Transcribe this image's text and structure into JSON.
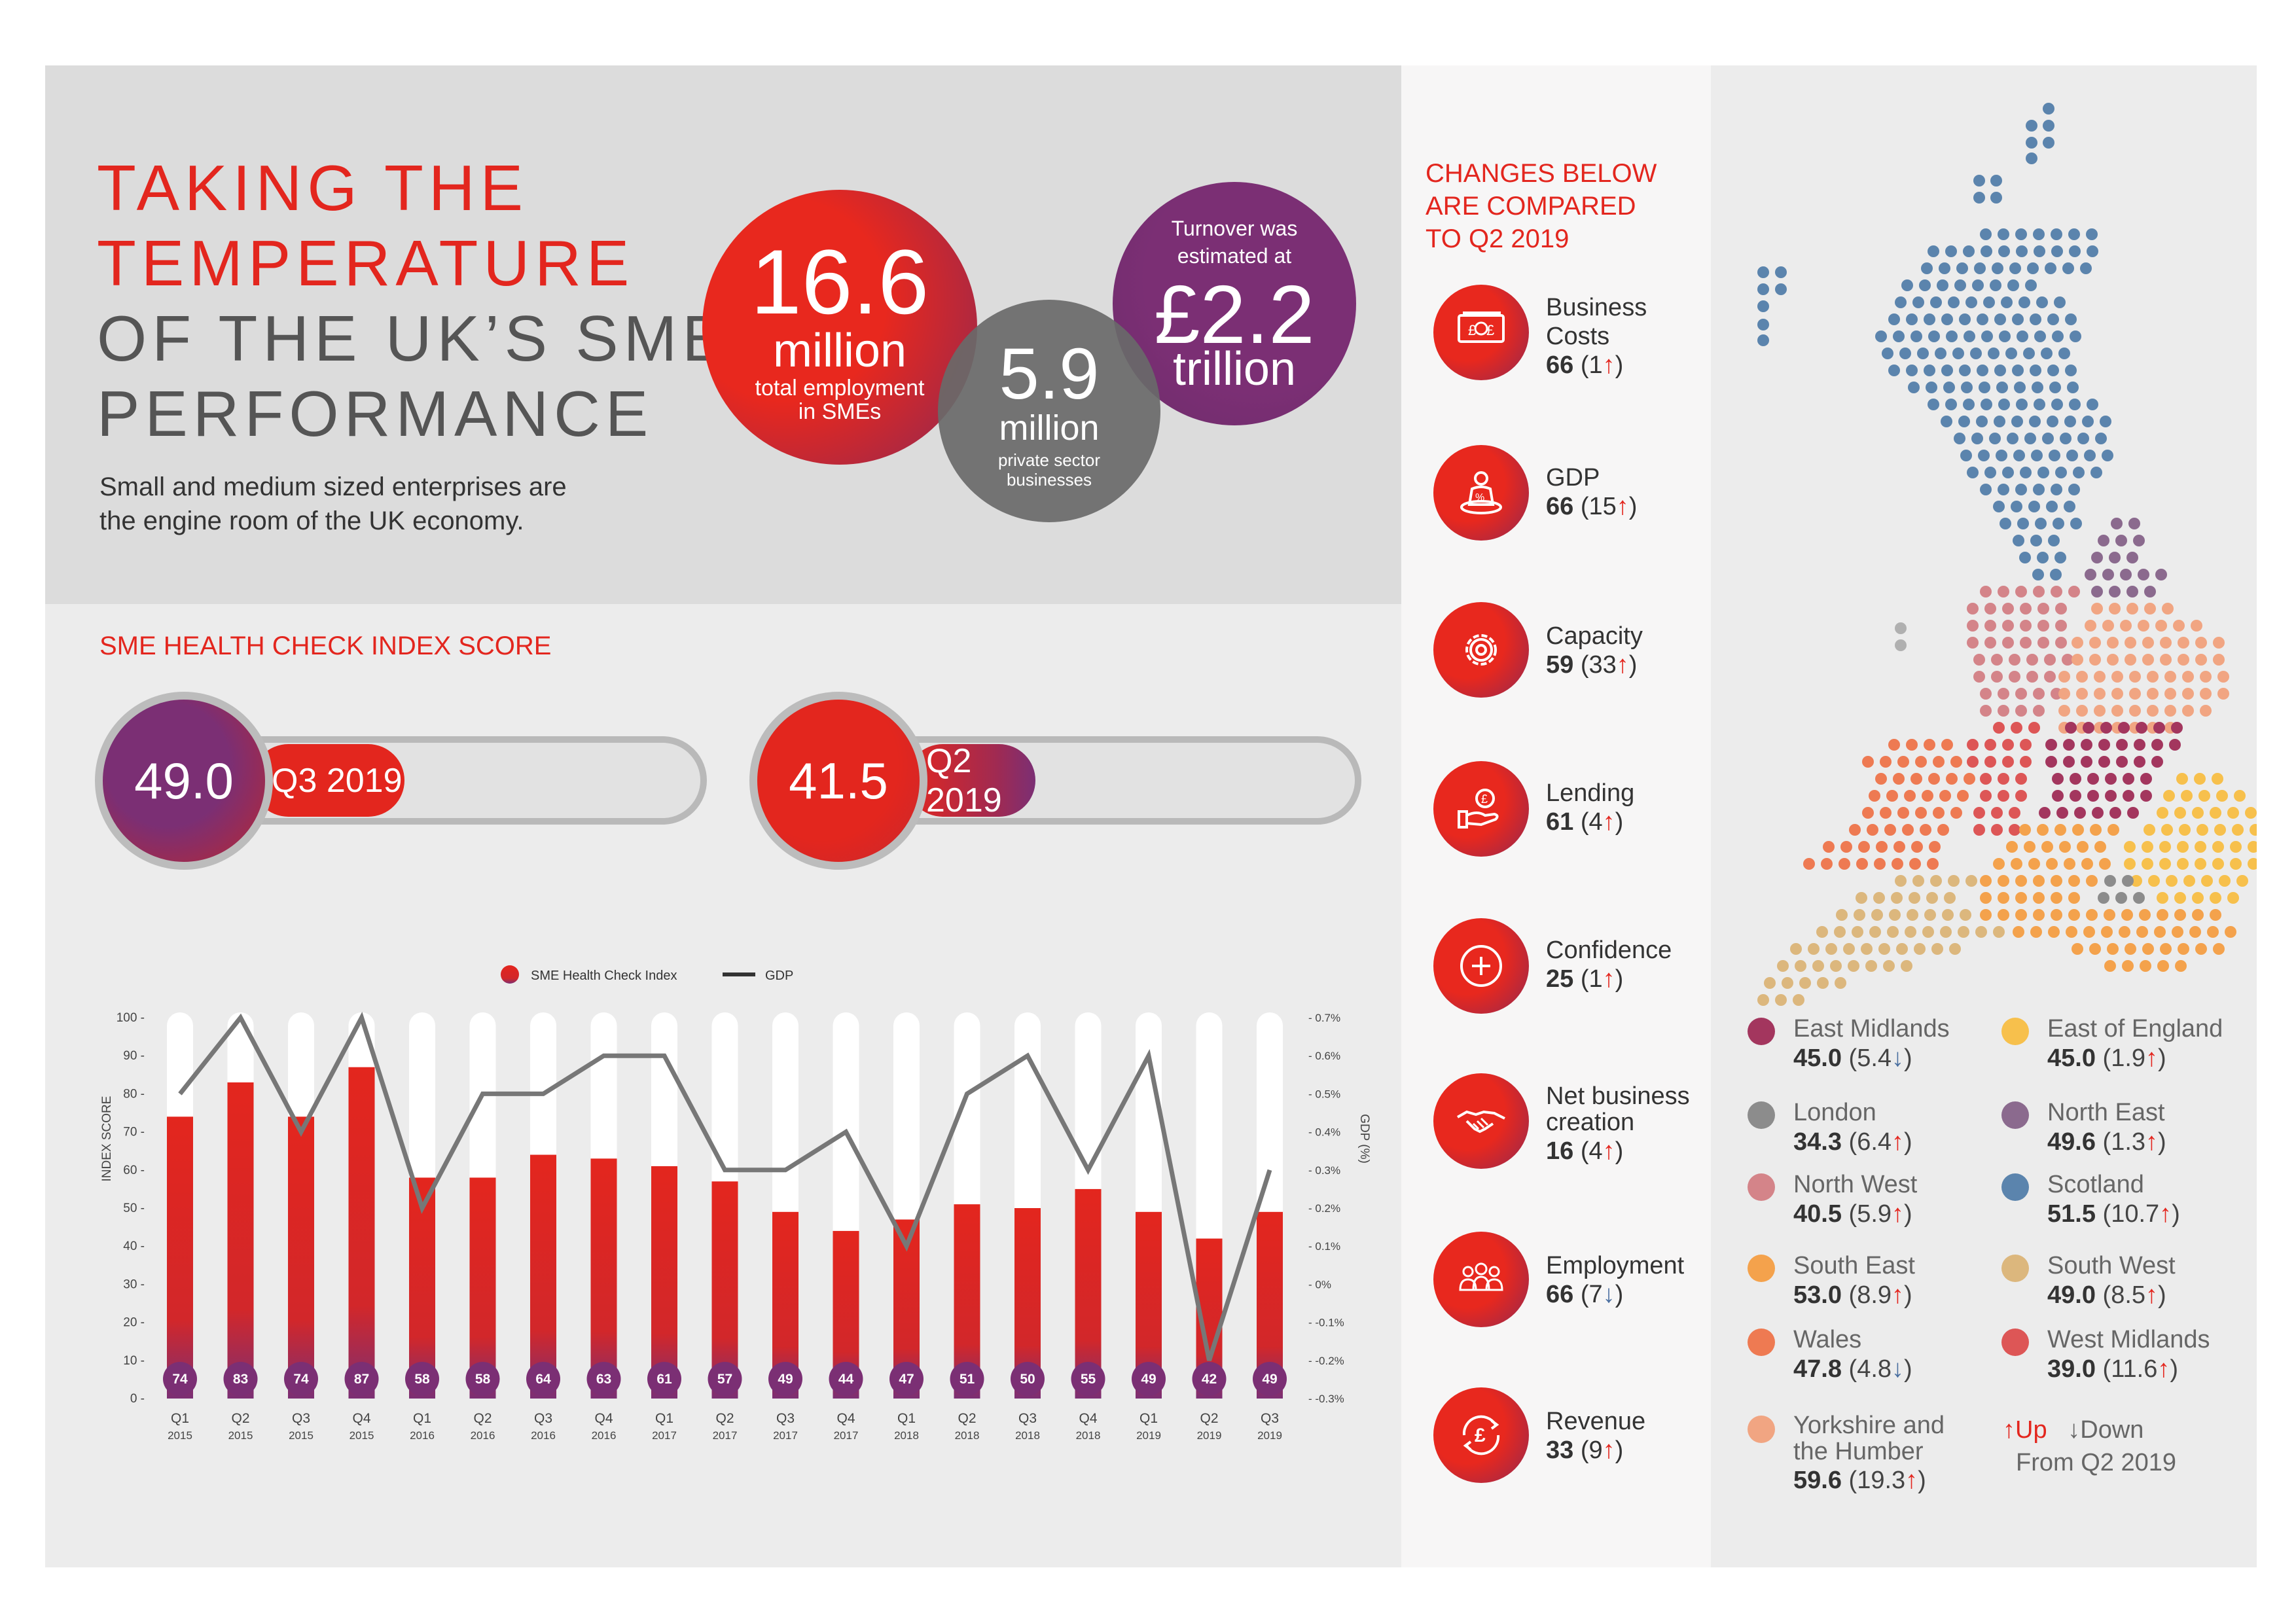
{
  "header": {
    "title_lines_red": [
      "TAKING THE",
      "TEMPERATURE"
    ],
    "title_lines_grey": [
      "OF THE UK’S SME",
      "PERFORMANCE"
    ],
    "subtitle_lines": [
      "Small and medium sized enterprises are",
      "the engine room of the UK economy."
    ]
  },
  "stats": {
    "employment": {
      "value": "16.6",
      "unit": "million",
      "desc_lines": [
        "total employment",
        "in SMEs"
      ]
    },
    "businesses": {
      "value": "5.9",
      "unit": "million",
      "desc_lines": [
        "private sector",
        "businesses"
      ]
    },
    "turnover": {
      "pre_lines": [
        "Turnover was",
        "estimated at"
      ],
      "value": "£2.2",
      "unit": "trillion"
    }
  },
  "index": {
    "heading": "SME HEALTH CHECK INDEX SCORE",
    "current": {
      "score": "49.0",
      "label": "Q3 2019",
      "value": 49.0
    },
    "previous": {
      "score": "41.5",
      "label": "Q2 2019",
      "value": 41.5
    }
  },
  "chart_data": {
    "type": "bar",
    "legend": [
      "SME Health Check Index",
      "GDP"
    ],
    "categories": [
      [
        "Q1",
        "2015"
      ],
      [
        "Q2",
        "2015"
      ],
      [
        "Q3",
        "2015"
      ],
      [
        "Q4",
        "2015"
      ],
      [
        "Q1",
        "2016"
      ],
      [
        "Q2",
        "2016"
      ],
      [
        "Q3",
        "2016"
      ],
      [
        "Q4",
        "2016"
      ],
      [
        "Q1",
        "2017"
      ],
      [
        "Q2",
        "2017"
      ],
      [
        "Q3",
        "2017"
      ],
      [
        "Q4",
        "2017"
      ],
      [
        "Q1",
        "2018"
      ],
      [
        "Q2",
        "2018"
      ],
      [
        "Q3",
        "2018"
      ],
      [
        "Q4",
        "2018"
      ],
      [
        "Q1",
        "2019"
      ],
      [
        "Q2",
        "2019"
      ],
      [
        "Q3",
        "2019"
      ]
    ],
    "series": [
      {
        "name": "SME Health Check Index",
        "type": "bar",
        "values": [
          74,
          83,
          74,
          87,
          58,
          58,
          64,
          63,
          61,
          57,
          49,
          44,
          47,
          51,
          50,
          55,
          49,
          42,
          49
        ]
      },
      {
        "name": "GDP",
        "type": "line",
        "axis": "right",
        "values": [
          0.5,
          0.7,
          0.4,
          0.7,
          0.2,
          0.5,
          0.5,
          0.6,
          0.6,
          0.3,
          0.3,
          0.4,
          0.1,
          0.5,
          0.6,
          0.3,
          0.6,
          -0.2,
          0.3
        ]
      }
    ],
    "ylabel": "INDEX SCORE",
    "ylabel_right": "GDP (%)",
    "ylim": [
      0,
      100
    ],
    "ylim_right": [
      -0.3,
      0.7
    ],
    "yticks": [
      "100",
      "90",
      "80",
      "70",
      "60",
      "50",
      "40",
      "30",
      "20",
      "10",
      "0"
    ],
    "yticks_right": [
      "0.7%",
      "0.6%",
      "0.5%",
      "0.4%",
      "0.3%",
      "0.2%",
      "0.1%",
      "0%",
      "-0.1%",
      "-0.2%",
      "-0.3%"
    ],
    "colors": {
      "bar": "#e3261e",
      "bar_bottom": "#7b2f74",
      "track": "#ffffff",
      "line": "#777777"
    }
  },
  "changes": {
    "heading_lines": [
      "CHANGES BELOW",
      "ARE COMPARED",
      "TO Q2 2019"
    ],
    "items": [
      {
        "icon": "money-icon",
        "name_lines": [
          "Business",
          "Costs"
        ],
        "value": "66",
        "delta": "1",
        "dir": "↑"
      },
      {
        "icon": "gdp-person-icon",
        "name_lines": [
          "GDP"
        ],
        "value": "66",
        "delta": "15",
        "dir": "↑"
      },
      {
        "icon": "gear-icon",
        "name_lines": [
          "Capacity"
        ],
        "value": "59",
        "delta": "33",
        "dir": "↑"
      },
      {
        "icon": "lending-hand-icon",
        "name_lines": [
          "Lending"
        ],
        "value": "61",
        "delta": "4",
        "dir": "↑"
      },
      {
        "icon": "plus-icon",
        "name_lines": [
          "Confidence"
        ],
        "value": "25",
        "delta": "1",
        "dir": "↑"
      },
      {
        "icon": "handshake-icon",
        "name_lines": [
          "Net business",
          "creation"
        ],
        "value": "16",
        "delta": "4",
        "dir": "↑"
      },
      {
        "icon": "people-icon",
        "name_lines": [
          "Employment"
        ],
        "value": "66",
        "delta": "7",
        "dir": "↓"
      },
      {
        "icon": "pound-cycle-icon",
        "name_lines": [
          "Revenue"
        ],
        "value": "33",
        "delta": "9",
        "dir": "↑"
      }
    ]
  },
  "regions": {
    "left": [
      {
        "name_lines": [
          "East Midlands"
        ],
        "value": "45.0",
        "delta": "5.4",
        "dir": "↓",
        "color": "#a3365e"
      },
      {
        "name_lines": [
          "London"
        ],
        "value": "34.3",
        "delta": "6.4",
        "dir": "↑",
        "color": "#8c8c8c"
      },
      {
        "name_lines": [
          "North West"
        ],
        "value": "40.5",
        "delta": "5.9",
        "dir": "↑",
        "color": "#d48489"
      },
      {
        "name_lines": [
          "South East"
        ],
        "value": "53.0",
        "delta": "8.9",
        "dir": "↑",
        "color": "#f4a24c"
      },
      {
        "name_lines": [
          "Wales"
        ],
        "value": "47.8",
        "delta": "4.8",
        "dir": "↓",
        "color": "#ee7a52"
      },
      {
        "name_lines": [
          "Yorkshire and",
          "the Humber"
        ],
        "value": "59.6",
        "delta": "19.3",
        "dir": "↑",
        "color": "#f1a582"
      }
    ],
    "right": [
      {
        "name_lines": [
          "East of England"
        ],
        "value": "45.0",
        "delta": "1.9",
        "dir": "↑",
        "color": "#f7c04c"
      },
      {
        "name_lines": [
          "North East"
        ],
        "value": "49.6",
        "delta": "1.3",
        "dir": "↑",
        "color": "#8b6a8e"
      },
      {
        "name_lines": [
          "Scotland"
        ],
        "value": "51.5",
        "delta": "10.7",
        "dir": "↑",
        "color": "#5b84ad"
      },
      {
        "name_lines": [
          "South West"
        ],
        "value": "49.0",
        "delta": "8.5",
        "dir": "↑",
        "color": "#dcb77d"
      },
      {
        "name_lines": [
          "West Midlands"
        ],
        "value": "39.0",
        "delta": "11.6",
        "dir": "↑",
        "color": "#dd5656"
      }
    ],
    "key": {
      "up": "↑Up",
      "down": "↓Down",
      "from": "From Q2 2019"
    }
  }
}
